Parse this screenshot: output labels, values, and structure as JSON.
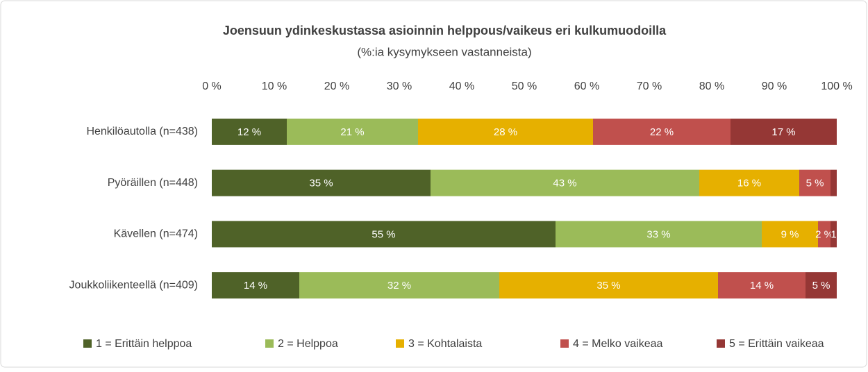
{
  "chart_data": {
    "type": "stacked_barh",
    "title": "Joensuun ydinkeskustassa asioinnin helppous/vaikeus eri kulkumuodoilla",
    "subtitle": "(%:ia kysymykseen vastanneista)",
    "categories": [
      "Henkilöautolla (n=438)",
      "Pyöräillen (n=448)",
      "Kävellen (n=474)",
      "Joukkoliikenteellä (n=409)"
    ],
    "series": [
      {
        "name": "1 = Erittäin helppoa",
        "color": "#4f6228",
        "values": [
          12,
          35,
          55,
          14
        ],
        "value_labels": [
          "12 %",
          "35 %",
          "55 %",
          "14 %"
        ]
      },
      {
        "name": "2 = Helppoa",
        "color": "#9bbb59",
        "values": [
          21,
          43,
          33,
          32
        ],
        "value_labels": [
          "21 %",
          "43 %",
          "33 %",
          "32 %"
        ]
      },
      {
        "name": "3 = Kohtalaista",
        "color": "#e6b000",
        "values": [
          28,
          16,
          9,
          35
        ],
        "value_labels": [
          "28 %",
          "16 %",
          "9 %",
          "35 %"
        ]
      },
      {
        "name": "4 = Melko vaikeaa",
        "color": "#c0504d",
        "values": [
          22,
          5,
          2,
          14
        ],
        "value_labels": [
          "22 %",
          "5 %",
          "2 %",
          "14 %"
        ]
      },
      {
        "name": "5 = Erittäin vaikeaa",
        "color": "#953735",
        "values": [
          17,
          1,
          1,
          5
        ],
        "value_labels": [
          "17 %",
          null,
          "1",
          "5 %"
        ]
      }
    ],
    "xlim": [
      0,
      100
    ],
    "xticks": [
      {
        "value": 0,
        "label": "0 %"
      },
      {
        "value": 10,
        "label": "10 %"
      },
      {
        "value": 20,
        "label": "20 %"
      },
      {
        "value": 30,
        "label": "30 %"
      },
      {
        "value": 40,
        "label": "40 %"
      },
      {
        "value": 50,
        "label": "50 %"
      },
      {
        "value": 60,
        "label": "60 %"
      },
      {
        "value": 70,
        "label": "70 %"
      },
      {
        "value": 80,
        "label": "80 %"
      },
      {
        "value": 90,
        "label": "90 %"
      },
      {
        "value": 100,
        "label": "100 %"
      }
    ],
    "legend": "bottom"
  }
}
